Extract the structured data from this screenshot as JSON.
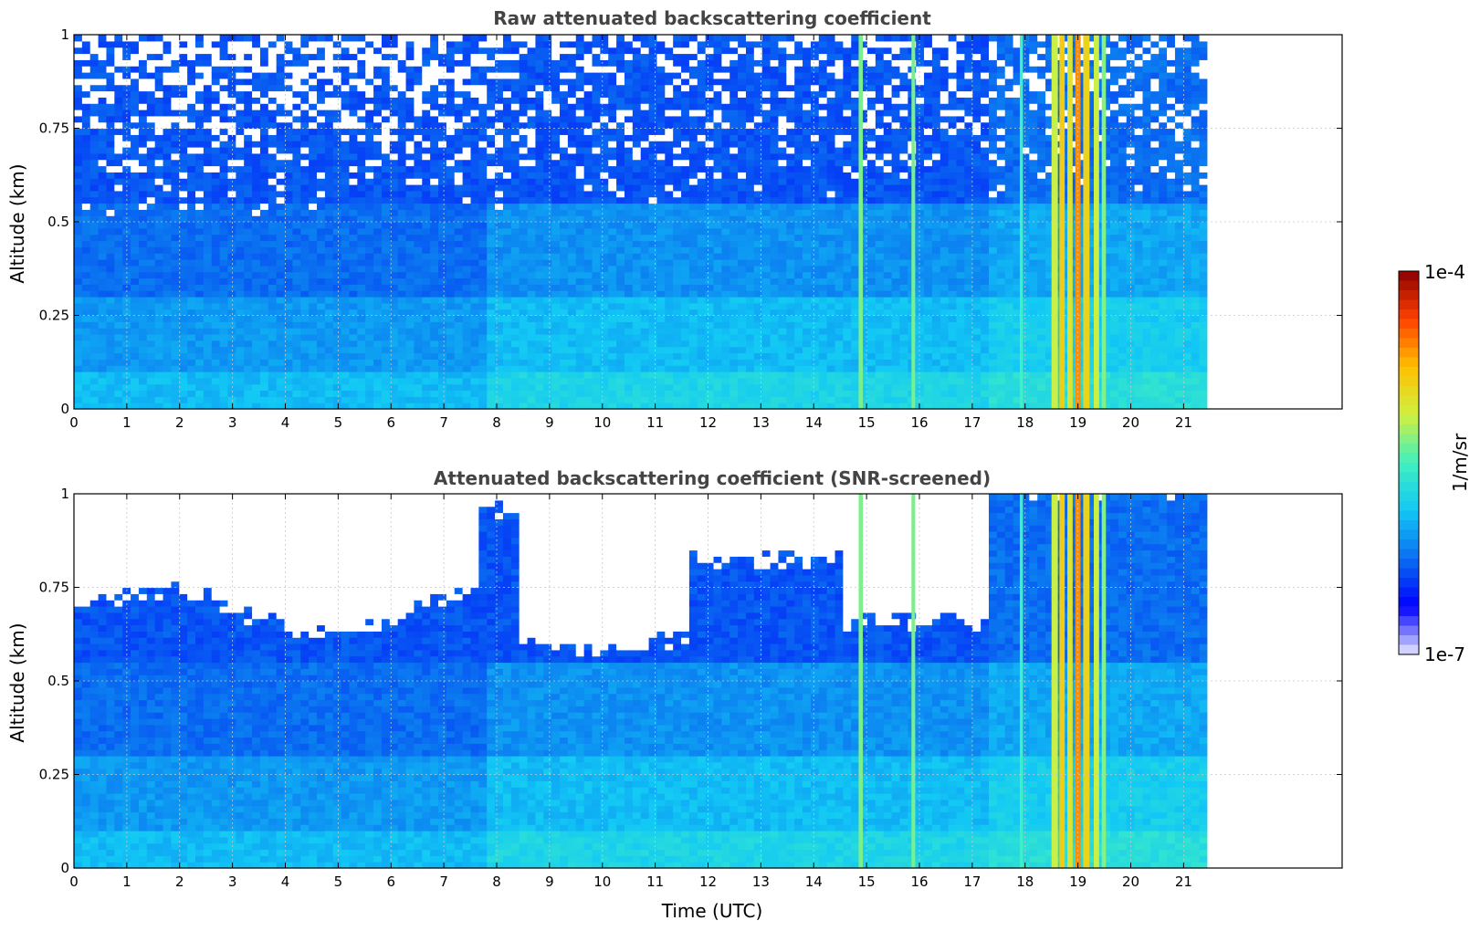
{
  "chart_data": [
    {
      "type": "heatmap",
      "title": "Raw attenuated backscattering coefficient",
      "xlabel": "",
      "ylabel": "Altitude (km)",
      "xlim": [
        0,
        24
      ],
      "ylim": [
        0,
        1
      ],
      "xticks": [
        "0",
        "1",
        "2",
        "3",
        "4",
        "5",
        "6",
        "7",
        "8",
        "9",
        "10",
        "11",
        "12",
        "13",
        "14",
        "15",
        "16",
        "17",
        "18",
        "19",
        "20",
        "21"
      ],
      "yticks": [
        "0",
        "0.25",
        "0.5",
        "0.75",
        "1"
      ],
      "data_extent_x": [
        0,
        21.45
      ],
      "grid": true,
      "screened": false
    },
    {
      "type": "heatmap",
      "title": "Attenuated backscattering coefficient (SNR-screened)",
      "xlabel": "Time (UTC)",
      "ylabel": "Altitude (km)",
      "xlim": [
        0,
        24
      ],
      "ylim": [
        0,
        1
      ],
      "xticks": [
        "0",
        "1",
        "2",
        "3",
        "4",
        "5",
        "6",
        "7",
        "8",
        "9",
        "10",
        "11",
        "12",
        "13",
        "14",
        "15",
        "16",
        "17",
        "18",
        "19",
        "20",
        "21"
      ],
      "yticks": [
        "0",
        "0.25",
        "0.5",
        "0.75",
        "1"
      ],
      "data_extent_x": [
        0,
        21.45
      ],
      "grid": true,
      "screened": true
    }
  ],
  "colorbar": {
    "max_label": "1e-4",
    "min_label": "1e-7",
    "unit_label": "1/m/sr",
    "scale": "log",
    "colormap": [
      "#e8e8ff",
      "#0000ff",
      "#0a6ef0",
      "#12c8f5",
      "#40f0c0",
      "#d0f040",
      "#ffc000",
      "#ff4000",
      "#8b0000"
    ]
  }
}
